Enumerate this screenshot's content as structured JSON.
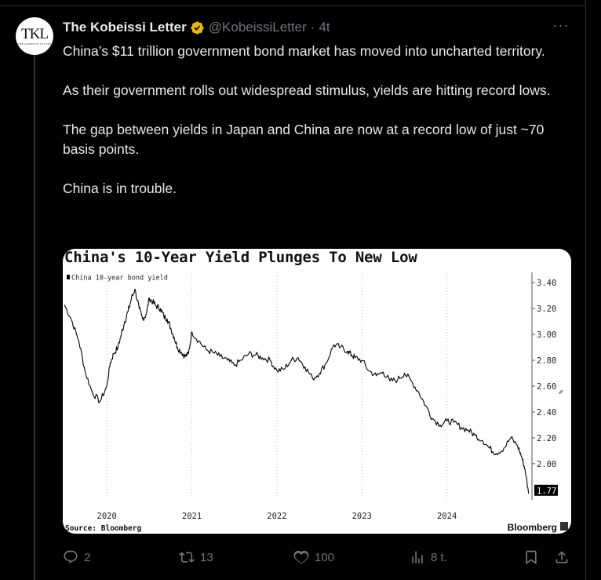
{
  "tweet": {
    "author_name": "The Kobeissi Letter",
    "handle": "@KobeissiLetter",
    "separator": "·",
    "time": "4t",
    "avatar_text": "TKL",
    "avatar_subtext": "THE KOBEISSI LETTER",
    "paragraphs": [
      "China’s $11 trillion government bond market has moved into uncharted territory.",
      "As their government rolls out widespread stimulus, yields are hitting record lows.",
      "The gap between yields in Japan and China are now at a record low of just ~70 basis points.",
      "China is in trouble."
    ],
    "verified_color": "#e2b719"
  },
  "actions": {
    "replies": "2",
    "reposts": "13",
    "likes": "100",
    "views": "8 t."
  },
  "chart_data": {
    "type": "line",
    "title": "China's 10-Year Yield Plunges To New Low",
    "legend": "China 10-year bond yield",
    "x_tick_labels": [
      "2020",
      "2021",
      "2022",
      "2023",
      "2024"
    ],
    "y_tick_labels": [
      "3.40",
      "3.20",
      "3.00",
      "2.80",
      "2.60",
      "2.40",
      "2.20",
      "2.00"
    ],
    "y_unit": "%",
    "ylim": [
      1.72,
      3.48
    ],
    "last_value_label": "1.77",
    "source": "Source: Bloomberg",
    "brand": "Bloomberg",
    "series_color": "#000000",
    "x": [
      2019.5,
      2019.58,
      2019.67,
      2019.75,
      2019.83,
      2019.92,
      2020.0,
      2020.04,
      2020.08,
      2020.13,
      2020.17,
      2020.21,
      2020.25,
      2020.29,
      2020.33,
      2020.38,
      2020.42,
      2020.46,
      2020.5,
      2020.54,
      2020.58,
      2020.63,
      2020.67,
      2020.71,
      2020.75,
      2020.79,
      2020.83,
      2020.88,
      2020.92,
      2020.96,
      2021.0,
      2021.08,
      2021.17,
      2021.25,
      2021.33,
      2021.42,
      2021.5,
      2021.58,
      2021.67,
      2021.75,
      2021.83,
      2021.92,
      2022.0,
      2022.08,
      2022.17,
      2022.25,
      2022.33,
      2022.42,
      2022.5,
      2022.58,
      2022.67,
      2022.75,
      2022.83,
      2022.88,
      2022.92,
      2023.0,
      2023.08,
      2023.17,
      2023.25,
      2023.33,
      2023.42,
      2023.5,
      2023.58,
      2023.67,
      2023.75,
      2023.83,
      2023.92,
      2024.0,
      2024.08,
      2024.17,
      2024.25,
      2024.33,
      2024.42,
      2024.5,
      2024.58,
      2024.67,
      2024.75,
      2024.83,
      2024.88,
      2024.92,
      2024.96
    ],
    "y": [
      3.23,
      3.12,
      2.95,
      2.7,
      2.55,
      2.48,
      2.6,
      2.78,
      2.85,
      2.9,
      3.0,
      3.1,
      3.18,
      3.28,
      3.35,
      3.2,
      3.12,
      3.15,
      3.28,
      3.25,
      3.22,
      3.2,
      3.14,
      3.12,
      3.05,
      2.98,
      2.9,
      2.86,
      2.83,
      2.85,
      3.02,
      2.95,
      2.88,
      2.86,
      2.83,
      2.8,
      2.76,
      2.8,
      2.85,
      2.84,
      2.82,
      2.8,
      2.72,
      2.73,
      2.8,
      2.82,
      2.75,
      2.66,
      2.7,
      2.78,
      2.92,
      2.9,
      2.87,
      2.84,
      2.82,
      2.8,
      2.72,
      2.68,
      2.71,
      2.64,
      2.65,
      2.7,
      2.64,
      2.55,
      2.45,
      2.35,
      2.3,
      2.33,
      2.32,
      2.28,
      2.26,
      2.22,
      2.18,
      2.12,
      2.08,
      2.12,
      2.2,
      2.14,
      2.05,
      1.95,
      1.77
    ]
  }
}
